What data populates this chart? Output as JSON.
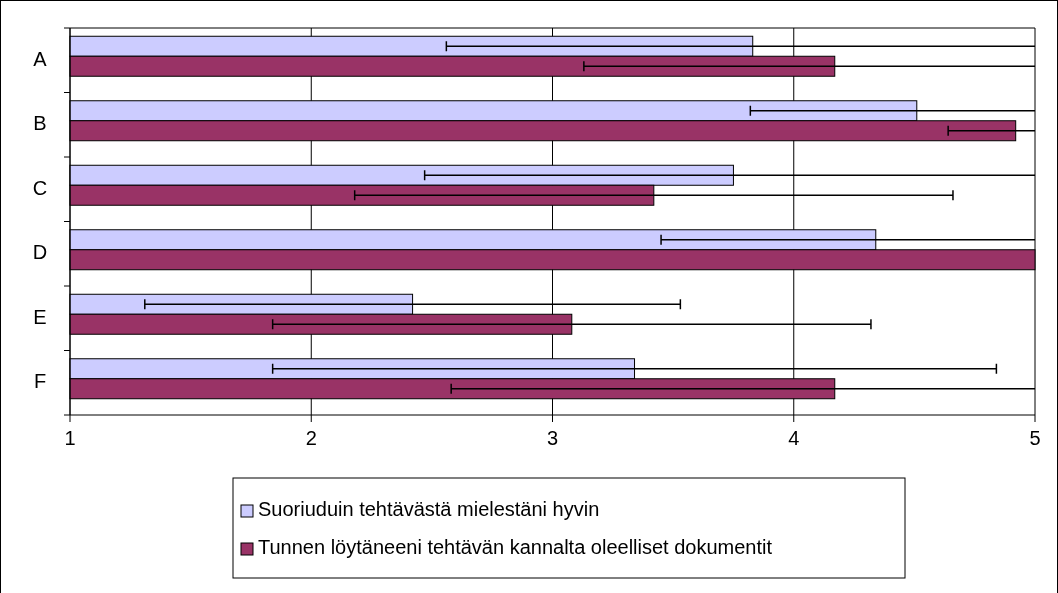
{
  "chart_data": {
    "type": "bar",
    "orientation": "horizontal",
    "categories": [
      "A",
      "B",
      "C",
      "D",
      "E",
      "F"
    ],
    "series": [
      {
        "name": "Suoriuduin tehtävästä mielestäni hyvin",
        "color": "#ccccff",
        "values": [
          3.83,
          4.51,
          3.75,
          4.34,
          2.42,
          3.34
        ],
        "errors": [
          [
            2.56,
            5
          ],
          [
            3.82,
            5
          ],
          [
            2.47,
            5
          ],
          [
            3.45,
            5
          ],
          1.11,
          1.5
        ]
      },
      {
        "name": "Tunnen löytäneeni tehtävän kannalta oleelliset dokumentit",
        "color": "#993366",
        "values": [
          4.17,
          4.92,
          3.42,
          5,
          3.08,
          4.17
        ],
        "errors": [
          [
            3.13,
            5
          ],
          [
            4.64,
            5
          ],
          1.24,
          null,
          1.24,
          [
            2.58,
            5
          ]
        ]
      }
    ],
    "xlim": [
      1,
      5
    ],
    "xticks": [
      1,
      2,
      3,
      4,
      5
    ],
    "grid": "x",
    "legend": "bottom"
  }
}
